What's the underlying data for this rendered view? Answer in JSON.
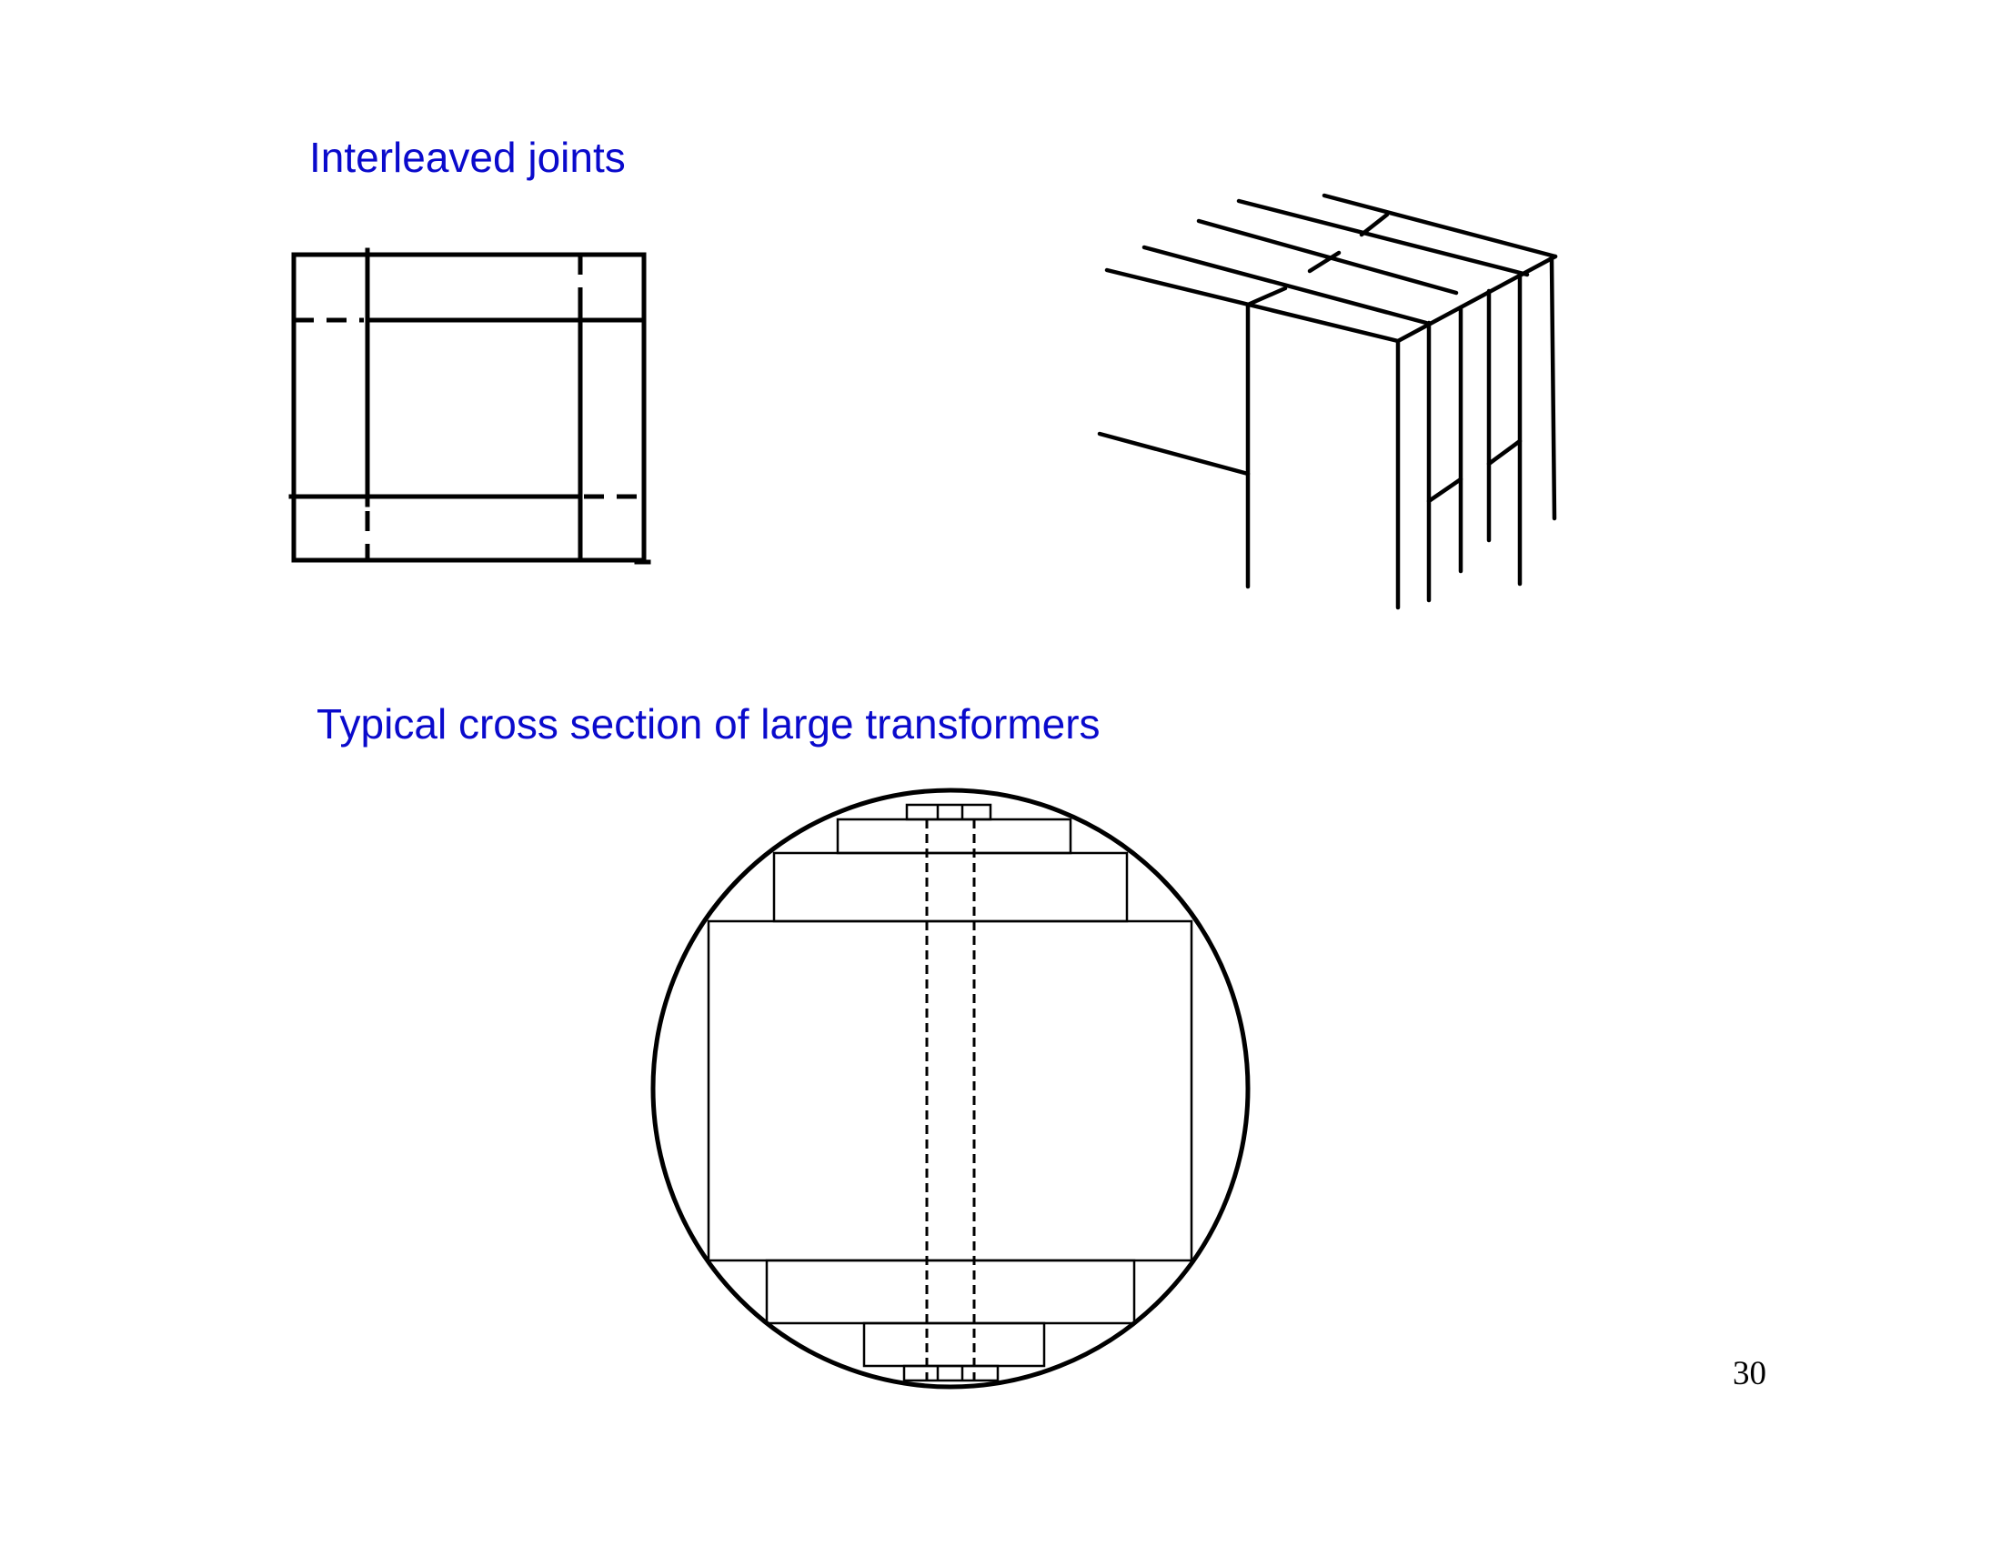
{
  "slide": {
    "heading_joints": "Interleaved joints",
    "heading_cross_section": "Typical cross section of large transformers",
    "page_number": "30",
    "heading_color": "#0a0acc"
  }
}
